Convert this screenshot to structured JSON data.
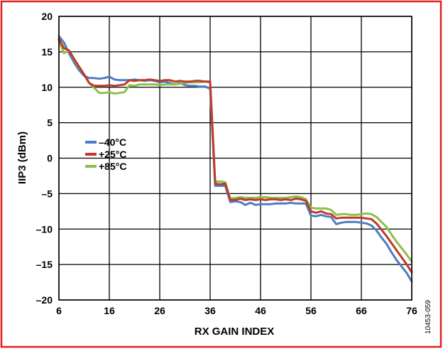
{
  "figure_id": "10453-059",
  "colors": {
    "border": "#e02020",
    "grid": "#000000",
    "series_minus40": "#4a7ec2",
    "series_plus25": "#c0392b",
    "series_plus85": "#8dbf4a"
  },
  "chart_data": {
    "type": "line",
    "title": "",
    "xlabel": "RX GAIN INDEX",
    "ylabel": "IIP3 (dBm)",
    "xlim": [
      6,
      76
    ],
    "ylim": [
      -20,
      20
    ],
    "xticks": [
      6,
      16,
      26,
      36,
      46,
      56,
      66,
      76
    ],
    "yticks": [
      20,
      15,
      10,
      5,
      0,
      -5,
      -10,
      -15,
      -20
    ],
    "ytick_labels": [
      "20",
      "15",
      "10",
      "5",
      "0",
      "–5",
      "–10",
      "–15",
      "–20"
    ],
    "grid": true,
    "legend_position": "left-center",
    "series": [
      {
        "name": "–40°C",
        "color": "#4a7ec2",
        "x": [
          6,
          7,
          8,
          9,
          10,
          11,
          12,
          13,
          14,
          15,
          16,
          17,
          18,
          19,
          20,
          21,
          22,
          23,
          24,
          25,
          26,
          27,
          28,
          29,
          30,
          31,
          32,
          33,
          34,
          35,
          36,
          37,
          38,
          39,
          40,
          41,
          42,
          43,
          44,
          45,
          46,
          47,
          48,
          49,
          50,
          51,
          52,
          53,
          54,
          55,
          56,
          57,
          58,
          59,
          60,
          61,
          62,
          63,
          64,
          65,
          66,
          67,
          68,
          69,
          70,
          71,
          72,
          73,
          74,
          75,
          76
        ],
        "y": [
          17.2,
          16.3,
          14.8,
          13.5,
          12.4,
          11.6,
          11.3,
          11.3,
          11.2,
          11.3,
          11.5,
          11.1,
          11.0,
          11.0,
          11.0,
          11.1,
          11.0,
          10.9,
          11.0,
          10.9,
          10.7,
          10.8,
          10.6,
          10.4,
          10.6,
          10.3,
          10.2,
          10.2,
          10.1,
          10.1,
          9.8,
          -3.9,
          -3.9,
          -3.9,
          -6.2,
          -6.1,
          -6.2,
          -6.6,
          -6.3,
          -6.6,
          -6.5,
          -6.5,
          -6.5,
          -6.4,
          -6.4,
          -6.4,
          -6.3,
          -6.4,
          -6.4,
          -6.4,
          -8.1,
          -8.2,
          -8.0,
          -8.2,
          -8.3,
          -9.3,
          -9.1,
          -9.0,
          -9.0,
          -9.0,
          -9.1,
          -9.2,
          -9.5,
          -10.2,
          -11.2,
          -12.1,
          -13.3,
          -14.4,
          -15.3,
          -16.2,
          -17.4
        ]
      },
      {
        "name": "+25°C",
        "color": "#c0392b",
        "x": [
          6,
          7,
          8,
          9,
          10,
          11,
          12,
          13,
          14,
          15,
          16,
          17,
          18,
          19,
          20,
          21,
          22,
          23,
          24,
          25,
          26,
          27,
          28,
          29,
          30,
          31,
          32,
          33,
          34,
          35,
          36,
          37,
          38,
          39,
          40,
          41,
          42,
          43,
          44,
          45,
          46,
          47,
          48,
          49,
          50,
          51,
          52,
          53,
          54,
          55,
          56,
          57,
          58,
          59,
          60,
          61,
          62,
          63,
          64,
          65,
          66,
          67,
          68,
          69,
          70,
          71,
          72,
          73,
          74,
          75,
          76
        ],
        "y": [
          16.8,
          15.5,
          15.2,
          14.0,
          12.9,
          11.8,
          10.6,
          10.2,
          10.2,
          10.2,
          10.3,
          10.2,
          10.3,
          10.4,
          11.0,
          10.9,
          11.0,
          11.0,
          11.1,
          11.0,
          10.9,
          11.0,
          11.0,
          10.8,
          10.9,
          10.8,
          10.8,
          10.9,
          10.9,
          10.8,
          10.8,
          -3.6,
          -3.7,
          -3.6,
          -5.9,
          -5.9,
          -5.7,
          -5.9,
          -5.8,
          -5.9,
          -5.8,
          -5.9,
          -5.8,
          -5.8,
          -5.9,
          -5.8,
          -5.9,
          -5.7,
          -5.8,
          -6.0,
          -7.5,
          -7.7,
          -7.5,
          -7.8,
          -7.9,
          -8.5,
          -8.4,
          -8.4,
          -8.4,
          -8.4,
          -8.4,
          -8.5,
          -8.6,
          -9.2,
          -10.1,
          -11.0,
          -12.0,
          -13.0,
          -14.0,
          -15.0,
          -16.1
        ]
      },
      {
        "name": "+85°C",
        "color": "#8dbf4a",
        "x": [
          6,
          7,
          8,
          9,
          10,
          11,
          12,
          13,
          14,
          15,
          16,
          17,
          18,
          19,
          20,
          21,
          22,
          23,
          24,
          25,
          26,
          27,
          28,
          29,
          30,
          31,
          32,
          33,
          34,
          35,
          36,
          37,
          38,
          39,
          40,
          41,
          42,
          43,
          44,
          45,
          46,
          47,
          48,
          49,
          50,
          51,
          52,
          53,
          54,
          55,
          56,
          57,
          58,
          59,
          60,
          61,
          62,
          63,
          64,
          65,
          66,
          67,
          68,
          69,
          70,
          71,
          72,
          73,
          74,
          75,
          76
        ],
        "y": [
          16.6,
          14.8,
          15.2,
          13.9,
          12.8,
          11.8,
          10.6,
          9.9,
          9.2,
          9.2,
          9.3,
          9.1,
          9.2,
          9.3,
          10.3,
          10.2,
          10.4,
          10.4,
          10.4,
          10.4,
          10.3,
          10.4,
          10.4,
          10.4,
          10.5,
          10.6,
          10.7,
          10.7,
          10.7,
          10.8,
          10.7,
          -3.3,
          -3.3,
          -3.4,
          -5.7,
          -5.6,
          -5.5,
          -5.6,
          -5.6,
          -5.6,
          -5.5,
          -5.5,
          -5.6,
          -5.6,
          -5.6,
          -5.6,
          -5.5,
          -5.4,
          -5.5,
          -5.8,
          -7.0,
          -7.1,
          -7.1,
          -7.1,
          -7.3,
          -8.0,
          -7.9,
          -7.9,
          -8.0,
          -8.0,
          -7.9,
          -7.8,
          -7.9,
          -8.3,
          -9.0,
          -9.7,
          -10.8,
          -11.8,
          -12.7,
          -13.6,
          -14.6
        ]
      }
    ]
  }
}
